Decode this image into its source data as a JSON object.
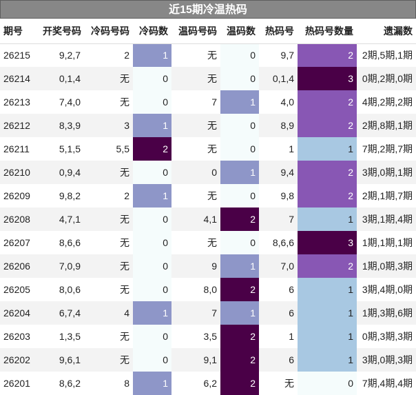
{
  "title": "近15期冷温热码",
  "headers": [
    "期号",
    "开奖号码",
    "冷码号码",
    "冷码数",
    "温码号码",
    "温码数",
    "热码号",
    "热码号数量",
    "遗漏数"
  ],
  "rows": [
    {
      "issue": "26215",
      "draw": "9,2,7",
      "cold": "2",
      "cold_n": "1",
      "warm": "无",
      "warm_n": "0",
      "hot": "9,7",
      "hot_n": "2",
      "miss": "2期,5期,1期"
    },
    {
      "issue": "26214",
      "draw": "0,1,4",
      "cold": "无",
      "cold_n": "0",
      "warm": "无",
      "warm_n": "0",
      "hot": "0,1,4",
      "hot_n": "3",
      "miss": "0期,2期,0期"
    },
    {
      "issue": "26213",
      "draw": "7,4,0",
      "cold": "无",
      "cold_n": "0",
      "warm": "7",
      "warm_n": "1",
      "hot": "4,0",
      "hot_n": "2",
      "miss": "4期,2期,2期"
    },
    {
      "issue": "26212",
      "draw": "8,3,9",
      "cold": "3",
      "cold_n": "1",
      "warm": "无",
      "warm_n": "0",
      "hot": "8,9",
      "hot_n": "2",
      "miss": "2期,8期,1期"
    },
    {
      "issue": "26211",
      "draw": "5,1,5",
      "cold": "5,5",
      "cold_n": "2",
      "warm": "无",
      "warm_n": "0",
      "hot": "1",
      "hot_n": "1",
      "miss": "7期,2期,7期"
    },
    {
      "issue": "26210",
      "draw": "0,9,4",
      "cold": "无",
      "cold_n": "0",
      "warm": "0",
      "warm_n": "1",
      "hot": "9,4",
      "hot_n": "2",
      "miss": "3期,0期,1期"
    },
    {
      "issue": "26209",
      "draw": "9,8,2",
      "cold": "2",
      "cold_n": "1",
      "warm": "无",
      "warm_n": "0",
      "hot": "9,8",
      "hot_n": "2",
      "miss": "2期,1期,7期"
    },
    {
      "issue": "26208",
      "draw": "4,7,1",
      "cold": "无",
      "cold_n": "0",
      "warm": "4,1",
      "warm_n": "2",
      "hot": "7",
      "hot_n": "1",
      "miss": "3期,1期,4期"
    },
    {
      "issue": "26207",
      "draw": "8,6,6",
      "cold": "无",
      "cold_n": "0",
      "warm": "无",
      "warm_n": "0",
      "hot": "8,6,6",
      "hot_n": "3",
      "miss": "1期,1期,1期"
    },
    {
      "issue": "26206",
      "draw": "7,0,9",
      "cold": "无",
      "cold_n": "0",
      "warm": "9",
      "warm_n": "1",
      "hot": "7,0",
      "hot_n": "2",
      "miss": "1期,0期,3期"
    },
    {
      "issue": "26205",
      "draw": "8,0,6",
      "cold": "无",
      "cold_n": "0",
      "warm": "8,0",
      "warm_n": "2",
      "hot": "6",
      "hot_n": "1",
      "miss": "3期,4期,0期"
    },
    {
      "issue": "26204",
      "draw": "6,7,4",
      "cold": "4",
      "cold_n": "1",
      "warm": "7",
      "warm_n": "1",
      "hot": "6",
      "hot_n": "1",
      "miss": "1期,3期,6期"
    },
    {
      "issue": "26203",
      "draw": "1,3,5",
      "cold": "无",
      "cold_n": "0",
      "warm": "3,5",
      "warm_n": "2",
      "hot": "1",
      "hot_n": "1",
      "miss": "0期,3期,3期"
    },
    {
      "issue": "26202",
      "draw": "9,6,1",
      "cold": "无",
      "cold_n": "0",
      "warm": "9,1",
      "warm_n": "2",
      "hot": "6",
      "hot_n": "1",
      "miss": "3期,0期,3期"
    },
    {
      "issue": "26201",
      "draw": "8,6,2",
      "cold": "8",
      "cold_n": "1",
      "warm": "6,2",
      "warm_n": "2",
      "hot": "无",
      "hot_n": "0",
      "miss": "7期,4期,4期"
    }
  ],
  "colors": {
    "header_bg": "#878787",
    "count_zero": "#f5fcfc",
    "count_one": "#8e96c8",
    "count_two_cold_warm": "#4a0047",
    "hot_one": "#a8c8e2",
    "hot_two": "#8857b4",
    "hot_three": "#4a0047"
  }
}
